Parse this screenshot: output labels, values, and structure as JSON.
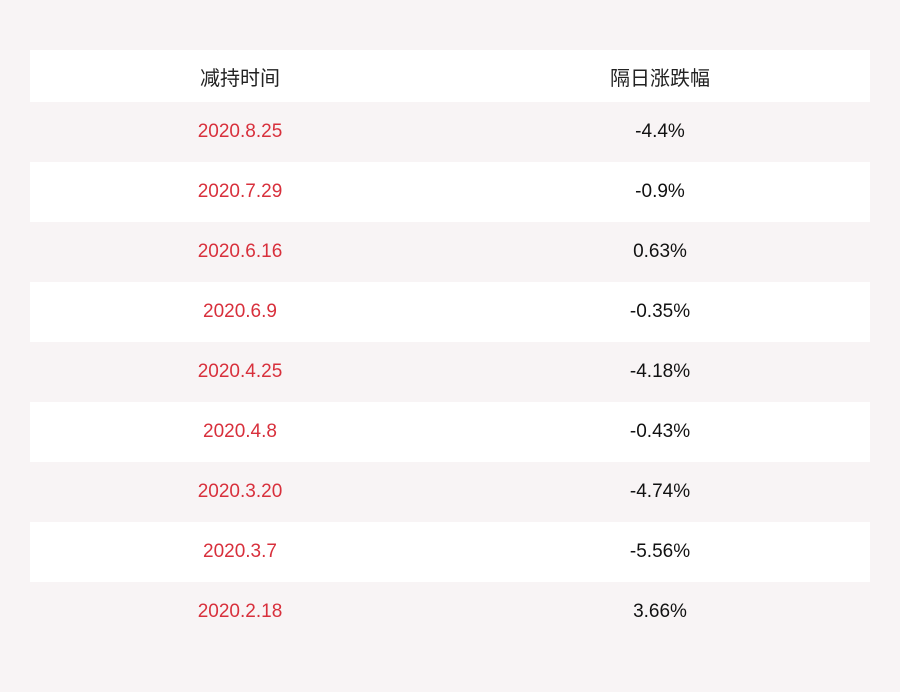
{
  "table": {
    "headers": [
      "减持时间",
      "隔日涨跌幅"
    ],
    "rows": [
      {
        "date": "2020.8.25",
        "change": "-4.4%"
      },
      {
        "date": "2020.7.29",
        "change": "-0.9%"
      },
      {
        "date": "2020.6.16",
        "change": "0.63%"
      },
      {
        "date": "2020.6.9",
        "change": "-0.35%"
      },
      {
        "date": "2020.4.25",
        "change": "-4.18%"
      },
      {
        "date": "2020.4.8",
        "change": "-0.43%"
      },
      {
        "date": "2020.3.20",
        "change": "-4.74%"
      },
      {
        "date": "2020.3.7",
        "change": "-5.56%"
      },
      {
        "date": "2020.2.18",
        "change": "3.66%"
      }
    ]
  },
  "colors": {
    "date_text": "#d8303c",
    "background": "#f8f4f5",
    "row_alt": "#ffffff"
  }
}
